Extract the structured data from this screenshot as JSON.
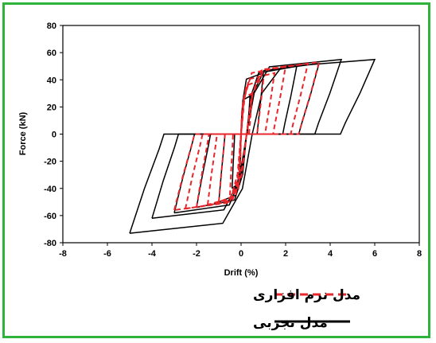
{
  "colors": {
    "frame_border": "#2fb33a",
    "software_model": "#e8262b",
    "experimental_model": "#000000"
  },
  "chart_data": {
    "type": "line",
    "title": "",
    "xlabel": "Drift (%)",
    "ylabel": "Force (kN)",
    "xlim": [
      -8,
      8
    ],
    "ylim": [
      -80,
      80
    ],
    "xticks": [
      -8,
      -6,
      -4,
      -2,
      0,
      2,
      4,
      6,
      8
    ],
    "yticks": [
      -80,
      -60,
      -40,
      -20,
      0,
      20,
      40,
      60,
      80
    ],
    "grid": false,
    "legend_position": "bottom",
    "series": [
      {
        "name": "مدل نرم افزاری",
        "style": "dashed",
        "color": "#e8262b",
        "loops": [
          {
            "dmin": -0.5,
            "dmax": 0.5,
            "fpos": 30,
            "fneg": -45
          },
          {
            "dmin": -1.0,
            "dmax": 1.0,
            "fpos": 40,
            "fneg": -50
          },
          {
            "dmin": -1.5,
            "dmax": 1.5,
            "fpos": 45,
            "fneg": -52
          },
          {
            "dmin": -2.0,
            "dmax": 2.0,
            "fpos": 50,
            "fneg": -54
          },
          {
            "dmin": -2.5,
            "dmax": 3.0,
            "fpos": 52,
            "fneg": -55
          },
          {
            "dmin": -3.0,
            "dmax": 3.5,
            "fpos": 53,
            "fneg": -56
          }
        ]
      },
      {
        "name": "مدل تجربی",
        "style": "solid",
        "color": "#000000",
        "loops": [
          {
            "dmin": -0.4,
            "dmax": 0.4,
            "fpos": 28,
            "fneg": -40
          },
          {
            "dmin": -1.0,
            "dmax": 1.0,
            "fpos": 45,
            "fneg": -50
          },
          {
            "dmin": -2.0,
            "dmax": 2.5,
            "fpos": 50,
            "fneg": -54
          },
          {
            "dmin": -3.0,
            "dmax": 3.5,
            "fpos": 52,
            "fneg": -58
          },
          {
            "dmin": -4.0,
            "dmax": 4.5,
            "fpos": 55,
            "fneg": -62
          },
          {
            "dmin": -5.0,
            "dmax": 6.0,
            "fpos": 55,
            "fneg": -73
          }
        ]
      }
    ]
  },
  "legend": {
    "software_label": "مدل نرم افزاری",
    "experimental_label": "مدل تجربی"
  }
}
